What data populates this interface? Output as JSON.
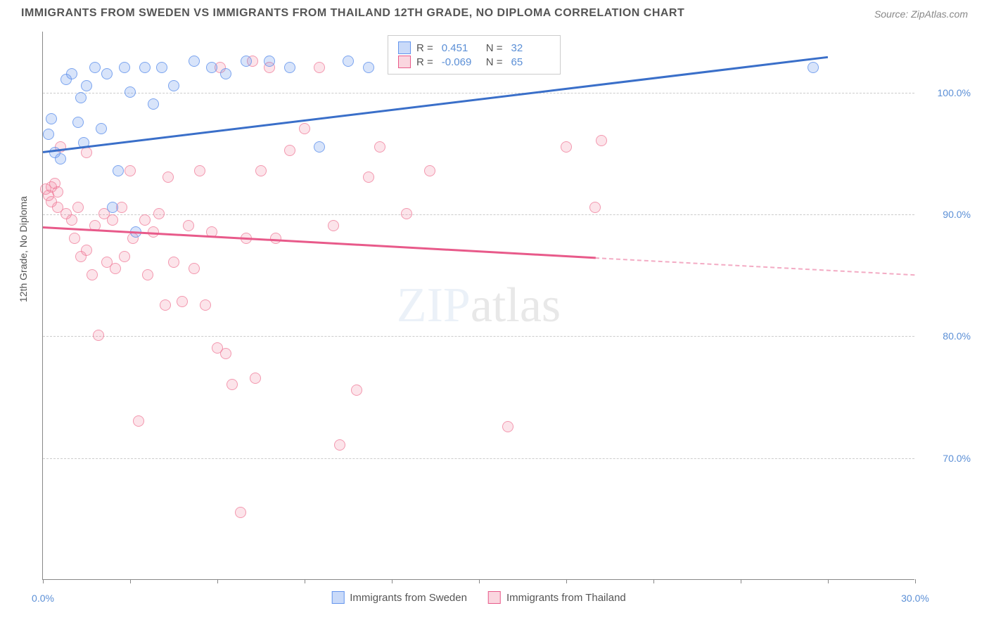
{
  "title": "IMMIGRANTS FROM SWEDEN VS IMMIGRANTS FROM THAILAND 12TH GRADE, NO DIPLOMA CORRELATION CHART",
  "source": "Source: ZipAtlas.com",
  "watermark_a": "ZIP",
  "watermark_b": "atlas",
  "y_axis_title": "12th Grade, No Diploma",
  "xlim": [
    0,
    30
  ],
  "ylim": [
    60,
    105
  ],
  "x_ticks": [
    0,
    3,
    6,
    9,
    12,
    15,
    18,
    21,
    24,
    27,
    30
  ],
  "x_labels": [
    {
      "v": 0,
      "t": "0.0%"
    },
    {
      "v": 30,
      "t": "30.0%"
    }
  ],
  "y_grid": [
    70,
    80,
    90,
    100
  ],
  "y_labels": [
    {
      "v": 70,
      "t": "70.0%"
    },
    {
      "v": 80,
      "t": "80.0%"
    },
    {
      "v": 90,
      "t": "90.0%"
    },
    {
      "v": 100,
      "t": "100.0%"
    }
  ],
  "series": {
    "sweden": {
      "label": "Immigrants from Sweden",
      "color_fill": "rgba(100,149,237,0.25)",
      "color_stroke": "#6495ed",
      "R_label": "R =",
      "R": "0.451",
      "N_label": "N =",
      "N": "32",
      "trend": {
        "x1": 0,
        "y1": 95.2,
        "x2": 27,
        "y2": 103,
        "color": "#3a6fc9"
      },
      "points": [
        [
          0.2,
          96.5
        ],
        [
          0.3,
          97.8
        ],
        [
          0.4,
          95.0
        ],
        [
          0.6,
          94.5
        ],
        [
          0.8,
          101.0
        ],
        [
          1.0,
          101.5
        ],
        [
          1.2,
          97.5
        ],
        [
          1.3,
          99.5
        ],
        [
          1.4,
          95.8
        ],
        [
          1.5,
          100.5
        ],
        [
          1.8,
          102.0
        ],
        [
          2.0,
          97.0
        ],
        [
          2.2,
          101.5
        ],
        [
          2.4,
          90.5
        ],
        [
          2.6,
          93.5
        ],
        [
          2.8,
          102.0
        ],
        [
          3.0,
          100.0
        ],
        [
          3.2,
          88.5
        ],
        [
          3.5,
          102.0
        ],
        [
          3.8,
          99.0
        ],
        [
          4.1,
          102.0
        ],
        [
          4.5,
          100.5
        ],
        [
          5.2,
          102.5
        ],
        [
          5.8,
          102.0
        ],
        [
          6.3,
          101.5
        ],
        [
          7.0,
          102.5
        ],
        [
          7.8,
          102.5
        ],
        [
          8.5,
          102.0
        ],
        [
          9.5,
          95.5
        ],
        [
          10.5,
          102.5
        ],
        [
          11.2,
          102.0
        ],
        [
          26.5,
          102.0
        ]
      ]
    },
    "thailand": {
      "label": "Immigrants from Thailand",
      "color_fill": "rgba(240,120,150,0.2)",
      "color_stroke": "#e85a8a",
      "R_label": "R =",
      "R": "-0.069",
      "N_label": "N =",
      "N": "65",
      "trend_solid": {
        "x1": 0,
        "y1": 89.0,
        "x2": 19,
        "y2": 86.5,
        "color": "#e85a8a"
      },
      "trend_dash": {
        "x1": 19,
        "y1": 86.5,
        "x2": 30,
        "y2": 85.1,
        "color": "#e85a8a"
      },
      "points": [
        [
          0.1,
          92.0
        ],
        [
          0.2,
          91.5
        ],
        [
          0.3,
          92.2
        ],
        [
          0.3,
          91.0
        ],
        [
          0.4,
          92.5
        ],
        [
          0.5,
          90.5
        ],
        [
          0.5,
          91.8
        ],
        [
          0.6,
          95.5
        ],
        [
          0.8,
          90.0
        ],
        [
          1.0,
          89.5
        ],
        [
          1.1,
          88.0
        ],
        [
          1.2,
          90.5
        ],
        [
          1.3,
          86.5
        ],
        [
          1.5,
          87.0
        ],
        [
          1.5,
          95.0
        ],
        [
          1.7,
          85.0
        ],
        [
          1.8,
          89.0
        ],
        [
          1.9,
          80.0
        ],
        [
          2.1,
          90.0
        ],
        [
          2.2,
          86.0
        ],
        [
          2.4,
          89.5
        ],
        [
          2.5,
          85.5
        ],
        [
          2.7,
          90.5
        ],
        [
          2.8,
          86.5
        ],
        [
          3.0,
          93.5
        ],
        [
          3.1,
          88.0
        ],
        [
          3.3,
          73.0
        ],
        [
          3.5,
          89.5
        ],
        [
          3.6,
          85.0
        ],
        [
          3.8,
          88.5
        ],
        [
          4.0,
          90.0
        ],
        [
          4.2,
          82.5
        ],
        [
          4.3,
          93.0
        ],
        [
          4.5,
          86.0
        ],
        [
          4.8,
          82.8
        ],
        [
          5.0,
          89.0
        ],
        [
          5.2,
          85.5
        ],
        [
          5.4,
          93.5
        ],
        [
          5.6,
          82.5
        ],
        [
          5.8,
          88.5
        ],
        [
          6.0,
          79.0
        ],
        [
          6.1,
          102.0
        ],
        [
          6.3,
          78.5
        ],
        [
          6.5,
          76.0
        ],
        [
          6.8,
          65.5
        ],
        [
          7.0,
          88.0
        ],
        [
          7.2,
          102.5
        ],
        [
          7.3,
          76.5
        ],
        [
          7.5,
          93.5
        ],
        [
          7.8,
          102.0
        ],
        [
          8.0,
          88.0
        ],
        [
          8.5,
          95.2
        ],
        [
          9.0,
          97.0
        ],
        [
          9.5,
          102.0
        ],
        [
          10.0,
          89.0
        ],
        [
          10.2,
          71.0
        ],
        [
          10.8,
          75.5
        ],
        [
          11.2,
          93.0
        ],
        [
          11.6,
          95.5
        ],
        [
          12.5,
          90.0
        ],
        [
          13.3,
          93.5
        ],
        [
          16.0,
          72.5
        ],
        [
          18.0,
          95.5
        ],
        [
          19.0,
          90.5
        ],
        [
          19.2,
          96.0
        ]
      ]
    }
  }
}
